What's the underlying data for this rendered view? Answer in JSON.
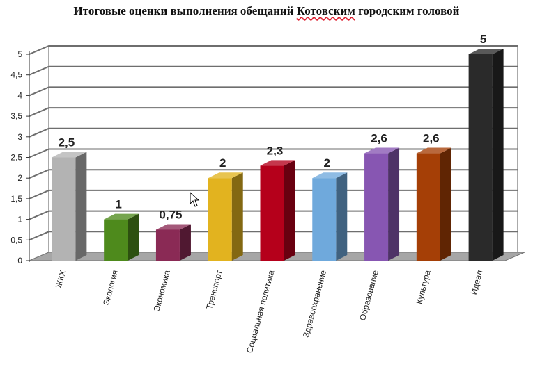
{
  "chart_data": {
    "type": "bar",
    "title_parts": [
      "Итоговые оценки выполнения обещаний ",
      "Котовским",
      " городским головой"
    ],
    "categories": [
      "ЖКХ",
      "Экология",
      "Экономика",
      "Транспорт",
      "Социальная политика",
      "Здравоохранение",
      "Образование",
      "Культура",
      "Идеал"
    ],
    "values": [
      2.5,
      1,
      0.75,
      2,
      2.3,
      2,
      2.6,
      2.6,
      5
    ],
    "data_labels": [
      "2,5",
      "1",
      "0,75",
      "2",
      "2,3",
      "2",
      "2,6",
      "2,6",
      "5"
    ],
    "colors": [
      "#b3b3b3",
      "#4e8a1c",
      "#8a2a55",
      "#e2b31f",
      "#b5001b",
      "#6fa9dc",
      "#8756b2",
      "#a53f06",
      "#2a2a2a"
    ],
    "ylim": [
      0,
      5
    ],
    "yticks": [
      "0",
      "0,5",
      "1",
      "1,5",
      "2",
      "2,5",
      "3",
      "3,5",
      "4",
      "4,5",
      "5"
    ],
    "grid": true,
    "legend": "none",
    "xlabel": "",
    "ylabel": ""
  }
}
